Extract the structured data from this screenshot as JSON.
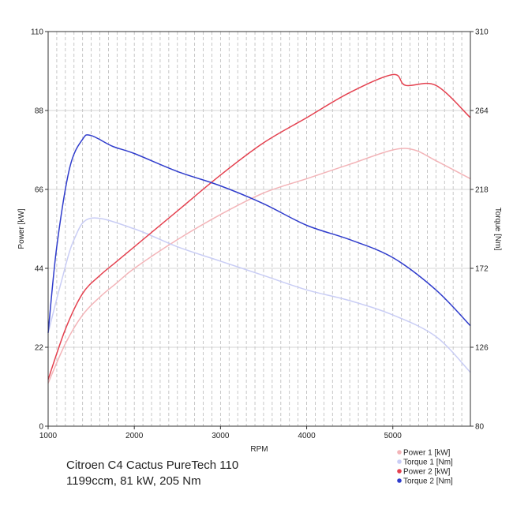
{
  "chart_data": {
    "type": "line",
    "caption_line1": "Citroen C4 Cactus PureTech 110",
    "caption_line2": "1199ccm, 81 kW, 205 Nm",
    "xlabel": "RPM",
    "ylabel_left": "Power [kW]",
    "ylabel_right": "Torque [Nm]",
    "xlim": [
      1000,
      5900
    ],
    "ylim_left": [
      0,
      110
    ],
    "ylim_right": [
      80,
      310
    ],
    "x_ticks": [
      1000,
      2000,
      3000,
      4000,
      5000
    ],
    "y_left_ticks": [
      0,
      22,
      44,
      66,
      88,
      110
    ],
    "y_right_ticks": [
      80,
      126,
      172,
      218,
      264,
      310
    ],
    "grid": true,
    "legend_position": "bottom-right",
    "series": [
      {
        "name": "Power 1 [kW]",
        "axis": "left",
        "color": "#f3b4b8",
        "x": [
          1000,
          1200,
          1400,
          1600,
          1800,
          2000,
          2500,
          3000,
          3500,
          4000,
          4500,
          5000,
          5250,
          5500,
          5900
        ],
        "values": [
          12,
          23,
          31,
          36,
          40,
          44,
          52,
          59,
          65,
          69,
          73,
          77,
          77,
          74,
          69
        ]
      },
      {
        "name": "Torque 1 [Nm]",
        "axis": "left",
        "color": "#c9cdf5",
        "x": [
          1000,
          1150,
          1300,
          1500,
          2000,
          2500,
          3000,
          3500,
          4000,
          4500,
          5000,
          5500,
          5900
        ],
        "values": [
          26,
          40,
          52,
          58,
          55,
          50,
          46,
          42,
          38,
          35,
          31,
          25,
          15
        ]
      },
      {
        "name": "Power 2 [kW]",
        "axis": "left",
        "color": "#e4414f",
        "x": [
          1000,
          1200,
          1400,
          1600,
          1800,
          2000,
          2500,
          3000,
          3500,
          4000,
          4500,
          5000,
          5150,
          5500,
          5900
        ],
        "values": [
          13,
          27,
          37,
          42,
          46,
          50,
          60,
          70,
          79,
          86,
          93,
          98,
          95,
          95,
          86
        ]
      },
      {
        "name": "Torque 2 [Nm]",
        "axis": "left",
        "color": "#2f3ccc",
        "x": [
          1000,
          1100,
          1250,
          1400,
          1500,
          1750,
          2000,
          2500,
          3000,
          3500,
          4000,
          4500,
          5000,
          5500,
          5900
        ],
        "values": [
          26,
          50,
          72,
          80,
          81,
          78,
          76,
          71,
          67,
          62,
          56,
          52,
          47,
          38,
          28
        ]
      }
    ]
  }
}
